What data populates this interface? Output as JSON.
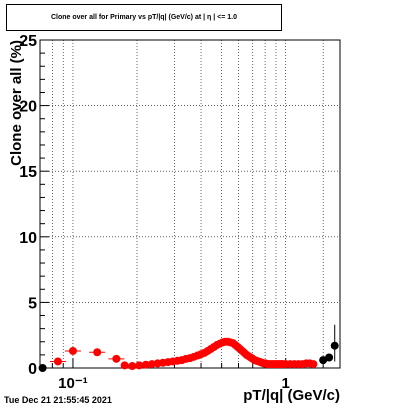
{
  "title": "Clone  over all for Primary vs pT/|q| (GeV/c) at | η | <= 1.0",
  "timestamp": "Tue Dec 21 21:55:45 2021",
  "chart_data": {
    "type": "scatter",
    "title": "Clone  over all for Primary vs pT/|q| (GeV/c) at | η | <= 1.0",
    "xlabel": "pT/|q| (GeV/c)",
    "ylabel": "Clone  over all (%)",
    "xscale": "log",
    "xlim": [
      0.07,
      1.8
    ],
    "ylim": [
      0,
      25
    ],
    "grid": true,
    "yticks": [
      0,
      5,
      10,
      15,
      20,
      25
    ],
    "ytick_labels": [
      "0",
      "5",
      "10",
      "15",
      "20",
      "25"
    ],
    "xticks_major": [
      0.1,
      1
    ],
    "xtick_labels": [
      "10⁻¹",
      "1"
    ],
    "series": [
      {
        "color": "#ff0000",
        "marker": "circle",
        "x": [
          0.085,
          0.1,
          0.13,
          0.16,
          0.175,
          0.19,
          0.205,
          0.22,
          0.235,
          0.25,
          0.265,
          0.28,
          0.295,
          0.31,
          0.325,
          0.34,
          0.355,
          0.37,
          0.385,
          0.4,
          0.415,
          0.43,
          0.445,
          0.46,
          0.475,
          0.49,
          0.505,
          0.52,
          0.535,
          0.55,
          0.565,
          0.58,
          0.595,
          0.61,
          0.625,
          0.64,
          0.655,
          0.67,
          0.685,
          0.7,
          0.715,
          0.73,
          0.745,
          0.76,
          0.775,
          0.79,
          0.805,
          0.82,
          0.835,
          0.85,
          0.865,
          0.88,
          0.895,
          0.91,
          0.925,
          0.94,
          0.955,
          0.97,
          1.0,
          1.05,
          1.1,
          1.15,
          1.2,
          1.25,
          1.3,
          1.35
        ],
        "y": [
          0.5,
          1.3,
          1.2,
          0.7,
          0.2,
          0.15,
          0.2,
          0.25,
          0.3,
          0.35,
          0.4,
          0.45,
          0.5,
          0.55,
          0.6,
          0.7,
          0.75,
          0.85,
          0.95,
          1.05,
          1.15,
          1.3,
          1.45,
          1.6,
          1.75,
          1.85,
          1.95,
          2.0,
          2.0,
          1.95,
          1.9,
          1.75,
          1.6,
          1.45,
          1.3,
          1.15,
          1.0,
          0.9,
          0.8,
          0.7,
          0.6,
          0.55,
          0.5,
          0.45,
          0.4,
          0.35,
          0.35,
          0.3,
          0.3,
          0.3,
          0.3,
          0.3,
          0.3,
          0.3,
          0.3,
          0.3,
          0.3,
          0.3,
          0.3,
          0.3,
          0.3,
          0.3,
          0.3,
          0.35,
          0.35,
          0.3
        ]
      },
      {
        "color": "#000000",
        "marker": "circle",
        "x": [
          0.072,
          1.5,
          1.6,
          1.7
        ],
        "y": [
          0.0,
          0.6,
          0.8,
          1.7
        ]
      }
    ]
  }
}
